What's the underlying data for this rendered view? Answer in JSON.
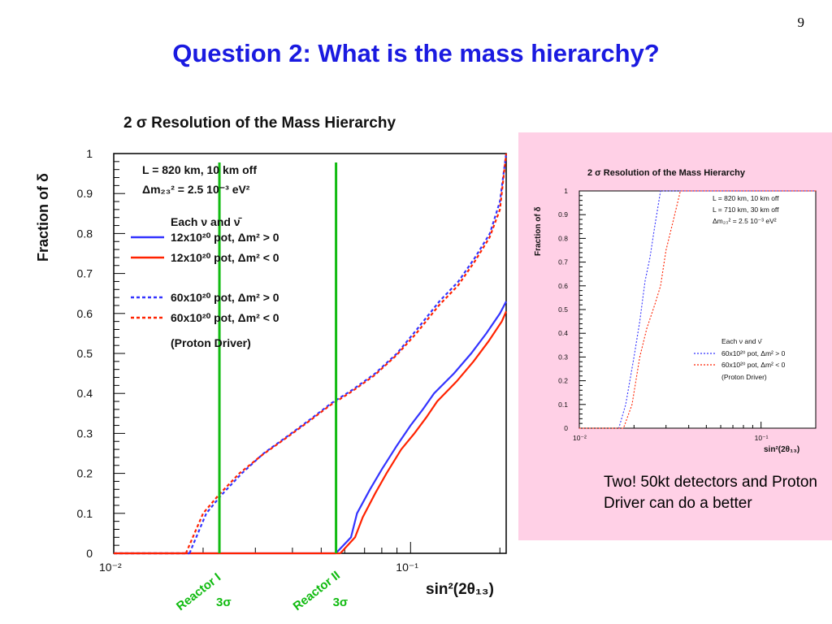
{
  "slide": {
    "number": "9",
    "title": "Question 2:  What is the mass hierarchy?",
    "caption": "Two! 50kt detectors and Proton Driver can do a better"
  },
  "colors": {
    "title": "#1a1ae0",
    "blue_series": "#3333ff",
    "red_series": "#ff2200",
    "reactor_lines": "#11bb11",
    "panel_bg": "#ffd0e6"
  },
  "chart_data": [
    {
      "type": "line",
      "title": "2 σ Resolution of the Mass Hierarchy",
      "xlabel": "sin²(2θ₁₃)",
      "ylabel": "Fraction of δ",
      "xscale": "log",
      "xlim": [
        0.01,
        0.21
      ],
      "ylim": [
        0,
        1
      ],
      "x_ticks": [
        "10⁻²",
        "10⁻¹"
      ],
      "y_ticks": [
        "0",
        "0.1",
        "0.2",
        "0.3",
        "0.4",
        "0.5",
        "0.6",
        "0.7",
        "0.8",
        "0.9",
        "1"
      ],
      "grid": false,
      "legend_position": "top-left",
      "annotations": [
        "L = 820 km, 10 km off",
        "Δm₂₃² = 2.5 10⁻³ eV²",
        "Each ν and ν̄",
        "(Proton Driver)"
      ],
      "vertical_markers": [
        {
          "label": "Reactor I",
          "sublabel": "3σ",
          "x": 0.0227
        },
        {
          "label": "Reactor II",
          "sublabel": "3σ",
          "x": 0.0561
        }
      ],
      "series": [
        {
          "name": "12x10²⁰ pot, Δm² > 0",
          "color": "#3333ff",
          "dash": "solid",
          "x": [
            0.056,
            0.063,
            0.066,
            0.073,
            0.08,
            0.09,
            0.1,
            0.11,
            0.12,
            0.14,
            0.16,
            0.18,
            0.2,
            0.21
          ],
          "y": [
            0,
            0.04,
            0.1,
            0.16,
            0.21,
            0.27,
            0.32,
            0.36,
            0.4,
            0.45,
            0.5,
            0.55,
            0.6,
            0.63
          ]
        },
        {
          "name": "12x10²⁰ pot, Δm² < 0",
          "color": "#ff2200",
          "dash": "solid",
          "x": [
            0.058,
            0.065,
            0.069,
            0.076,
            0.083,
            0.093,
            0.103,
            0.113,
            0.123,
            0.143,
            0.163,
            0.183,
            0.203,
            0.21
          ],
          "y": [
            0,
            0.04,
            0.09,
            0.15,
            0.2,
            0.26,
            0.3,
            0.34,
            0.38,
            0.43,
            0.48,
            0.53,
            0.58,
            0.605
          ]
        },
        {
          "name": "60x10²⁰ pot, Δm² > 0",
          "color": "#3333ff",
          "dash": "dashed",
          "x": [
            0.018,
            0.0205,
            0.023,
            0.027,
            0.032,
            0.038,
            0.045,
            0.054,
            0.064,
            0.076,
            0.09,
            0.105,
            0.125,
            0.145,
            0.165,
            0.185,
            0.2,
            0.21
          ],
          "y": [
            0,
            0.1,
            0.145,
            0.2,
            0.25,
            0.29,
            0.33,
            0.375,
            0.41,
            0.45,
            0.5,
            0.56,
            0.63,
            0.68,
            0.74,
            0.8,
            0.88,
            1.0
          ]
        },
        {
          "name": "60x10²⁰ pot, Δm² < 0",
          "color": "#ff2200",
          "dash": "dashed",
          "x": [
            0.0175,
            0.02,
            0.0225,
            0.0265,
            0.0315,
            0.0375,
            0.0445,
            0.0535,
            0.0635,
            0.0755,
            0.0895,
            0.1045,
            0.1245,
            0.1445,
            0.1645,
            0.1845,
            0.2,
            0.21
          ],
          "y": [
            0,
            0.1,
            0.145,
            0.2,
            0.245,
            0.285,
            0.325,
            0.37,
            0.405,
            0.445,
            0.495,
            0.55,
            0.62,
            0.67,
            0.73,
            0.79,
            0.86,
            1.0
          ]
        }
      ]
    },
    {
      "type": "line",
      "title": "2 σ Resolution of the Mass Hierarchy",
      "xlabel": "sin²(2θ₁₃)",
      "ylabel": "Fraction of δ",
      "xscale": "log",
      "xlim": [
        0.01,
        0.2
      ],
      "ylim": [
        0,
        1
      ],
      "x_ticks": [
        "10⁻²",
        "10⁻¹"
      ],
      "y_ticks": [
        "0",
        "0.1",
        "0.2",
        "0.3",
        "0.4",
        "0.5",
        "0.6",
        "0.7",
        "0.8",
        "0.9",
        "1"
      ],
      "grid": false,
      "legend_position": "bottom-right",
      "annotations": [
        "L = 820 km, 10 km off",
        "L = 710 km, 30 km off",
        "Δm₂₃² = 2.5 10⁻³ eV²",
        "Each ν and ν̄",
        "(Proton Driver)"
      ],
      "series": [
        {
          "name": "60x10²⁰ pot, Δm² > 0",
          "color": "#3333ff",
          "dash": "dashed",
          "x": [
            0.01,
            0.0165,
            0.018,
            0.02,
            0.0215,
            0.023,
            0.0245,
            0.026,
            0.028,
            0.2
          ],
          "y": [
            0,
            0,
            0.1,
            0.3,
            0.45,
            0.62,
            0.72,
            0.85,
            1.0,
            1.0
          ]
        },
        {
          "name": "60x10²⁰ pot, Δm² < 0",
          "color": "#ff2200",
          "dash": "dashed",
          "x": [
            0.01,
            0.0175,
            0.0195,
            0.0215,
            0.0235,
            0.026,
            0.028,
            0.03,
            0.033,
            0.036,
            0.2
          ],
          "y": [
            0,
            0,
            0.1,
            0.3,
            0.42,
            0.52,
            0.6,
            0.75,
            0.88,
            1.0,
            1.0
          ]
        }
      ]
    }
  ]
}
